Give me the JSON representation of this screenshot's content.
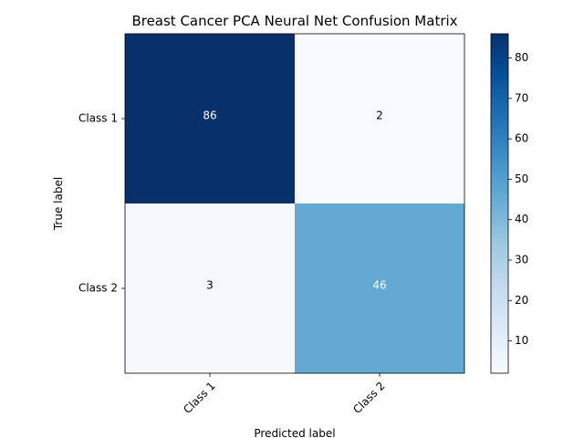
{
  "chart_data": {
    "type": "heatmap",
    "title": "Breast Cancer PCA Neural Net Confusion Matrix",
    "xlabel": "Predicted label",
    "ylabel": "True label",
    "x_categories": [
      "Class 1",
      "Class 2"
    ],
    "y_categories": [
      "Class 1",
      "Class 2"
    ],
    "values": [
      [
        86,
        2
      ],
      [
        3,
        46
      ]
    ],
    "colormap": "Blues",
    "colorbar": {
      "min": 2,
      "max": 86,
      "ticks": [
        10,
        20,
        30,
        40,
        50,
        60,
        70,
        80
      ]
    },
    "label_colors": {
      "dark_bg": "#ffffff",
      "light_bg": "#000000"
    }
  }
}
